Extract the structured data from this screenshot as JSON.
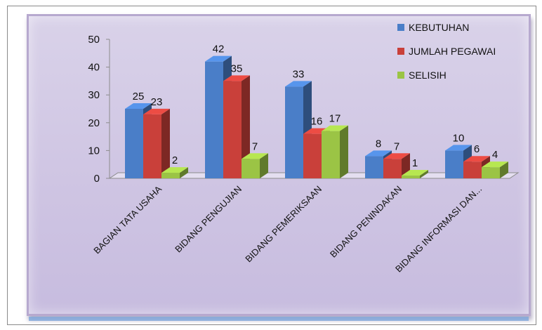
{
  "chart_data": {
    "type": "bar",
    "title": "",
    "xlabel": "",
    "ylabel": "",
    "ylim": [
      0,
      50
    ],
    "yticks": [
      0,
      10,
      20,
      30,
      40,
      50
    ],
    "categories": [
      "BAGIAN TATA USAHA",
      "BIDANG PENGUJIAN",
      "BIDANG PEMERIKSAAN",
      "BIDANG PENINDAKAN",
      "BIDANG INFORMASI DAN..."
    ],
    "series": [
      {
        "name": "KEBUTUHAN",
        "color": "#4a7ec8",
        "values": [
          25,
          42,
          33,
          8,
          10
        ]
      },
      {
        "name": "JUMLAH PEGAWAI",
        "color": "#c9403a",
        "values": [
          23,
          35,
          16,
          7,
          6
        ]
      },
      {
        "name": "SELISIH",
        "color": "#9bc445",
        "values": [
          2,
          7,
          17,
          1,
          4
        ]
      }
    ],
    "legend_position": "top-right",
    "grid": false,
    "style": "3d-clustered"
  }
}
